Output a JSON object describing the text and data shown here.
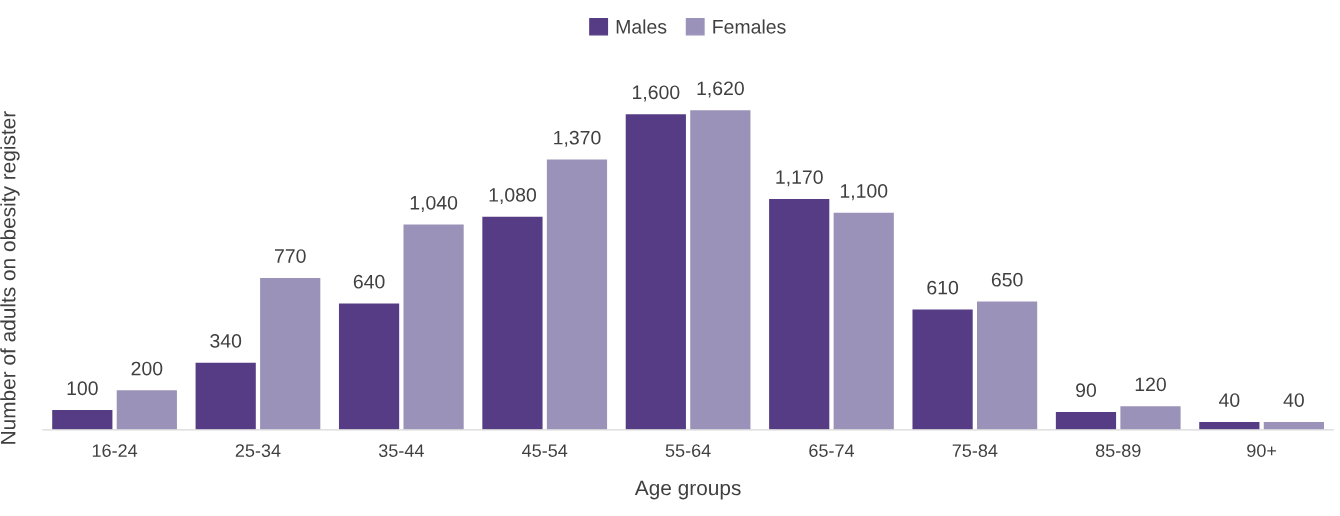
{
  "chart_data": {
    "type": "bar",
    "xlabel": "Age groups",
    "ylabel": "Number of adults on obesity register",
    "categories": [
      "16-24",
      "25-34",
      "35-44",
      "45-54",
      "55-64",
      "65-74",
      "75-84",
      "85-89",
      "90+"
    ],
    "series": [
      {
        "name": "Males",
        "color": "#553c84",
        "values": [
          100,
          340,
          640,
          1080,
          1600,
          1170,
          610,
          90,
          40
        ],
        "value_labels": [
          "100",
          "340",
          "640",
          "1,080",
          "1,600",
          "1,170",
          "610",
          "90",
          "40"
        ]
      },
      {
        "name": "Females",
        "color": "#9b92b9",
        "values": [
          200,
          770,
          1040,
          1370,
          1620,
          1100,
          650,
          120,
          40
        ],
        "value_labels": [
          "200",
          "770",
          "1,040",
          "1,370",
          "1,620",
          "1,100",
          "650",
          "120",
          "40"
        ]
      }
    ],
    "legend": "top",
    "grid": false,
    "tick_labels": "x"
  }
}
